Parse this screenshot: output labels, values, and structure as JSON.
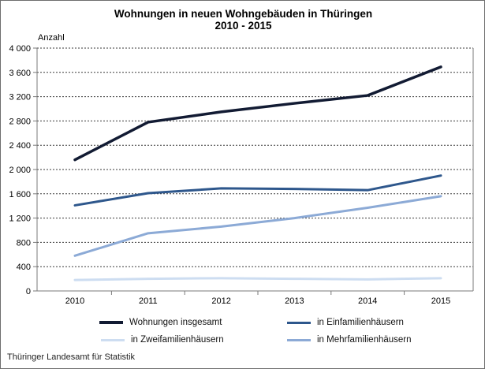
{
  "title": {
    "line1": "Wohnungen in neuen Wohngebäuden in Thüringen",
    "line2": "2010 - 2015"
  },
  "y_axis_unit": "Anzahl",
  "footer": "Thüringer Landesamt für Statistik",
  "colors": {
    "grid": "#3a3a3a",
    "plot_border": "#7a7a7a",
    "text": "#000000"
  },
  "chart_data": {
    "type": "line",
    "title": "Wohnungen in neuen Wohngebäuden in Thüringen 2010 - 2015",
    "xlabel": "",
    "ylabel": "Anzahl",
    "categories": [
      "2010",
      "2011",
      "2012",
      "2013",
      "2014",
      "2015"
    ],
    "series": [
      {
        "name": "Wohnungen insgesamt",
        "color": "#121b33",
        "width": 3.5,
        "values": [
          2160,
          2780,
          2950,
          3090,
          3220,
          3690
        ]
      },
      {
        "name": "in Einfamilienhäusern",
        "color": "#2e578c",
        "width": 3,
        "values": [
          1410,
          1610,
          1690,
          1680,
          1660,
          1900
        ]
      },
      {
        "name": "in Zweifamilienhäusern",
        "color": "#cdddf1",
        "width": 3,
        "values": [
          180,
          200,
          210,
          200,
          190,
          210
        ]
      },
      {
        "name": "in Mehrfamilienhäusern",
        "color": "#8caad6",
        "width": 3,
        "values": [
          580,
          950,
          1060,
          1200,
          1370,
          1560
        ]
      }
    ],
    "ylim": [
      0,
      4000
    ],
    "ytick_step": 400,
    "yticks": [
      0,
      400,
      800,
      1200,
      1600,
      2000,
      2400,
      2800,
      3200,
      3600,
      4000
    ],
    "grid": "horizontal-dashed",
    "legend_position": "bottom"
  }
}
